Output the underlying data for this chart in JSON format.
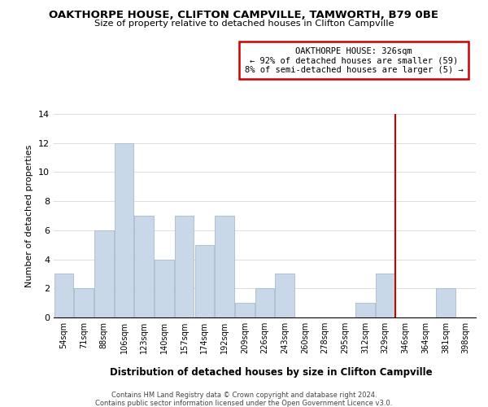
{
  "title": "OAKTHORPE HOUSE, CLIFTON CAMPVILLE, TAMWORTH, B79 0BE",
  "subtitle": "Size of property relative to detached houses in Clifton Campville",
  "xlabel": "Distribution of detached houses by size in Clifton Campville",
  "ylabel": "Number of detached properties",
  "bar_labels": [
    "54sqm",
    "71sqm",
    "88sqm",
    "106sqm",
    "123sqm",
    "140sqm",
    "157sqm",
    "174sqm",
    "192sqm",
    "209sqm",
    "226sqm",
    "243sqm",
    "260sqm",
    "278sqm",
    "295sqm",
    "312sqm",
    "329sqm",
    "346sqm",
    "364sqm",
    "381sqm",
    "398sqm"
  ],
  "bar_values": [
    3,
    2,
    6,
    12,
    7,
    4,
    7,
    5,
    7,
    1,
    2,
    3,
    0,
    0,
    0,
    1,
    3,
    0,
    0,
    2,
    0
  ],
  "bar_color": "#c8d8e8",
  "bar_edge_color": "#aabbcc",
  "vline_x_index": 16.5,
  "vline_color": "#cc0000",
  "annotation_title": "OAKTHORPE HOUSE: 326sqm",
  "annotation_line1": "← 92% of detached houses are smaller (59)",
  "annotation_line2": "8% of semi-detached houses are larger (5) →",
  "annotation_box_color": "#ffffff",
  "annotation_border_color": "#cc0000",
  "ylim": [
    0,
    14
  ],
  "yticks": [
    0,
    2,
    4,
    6,
    8,
    10,
    12,
    14
  ],
  "footer_line1": "Contains HM Land Registry data © Crown copyright and database right 2024.",
  "footer_line2": "Contains public sector information licensed under the Open Government Licence v3.0.",
  "background_color": "#ffffff",
  "grid_color": "#dddddd"
}
